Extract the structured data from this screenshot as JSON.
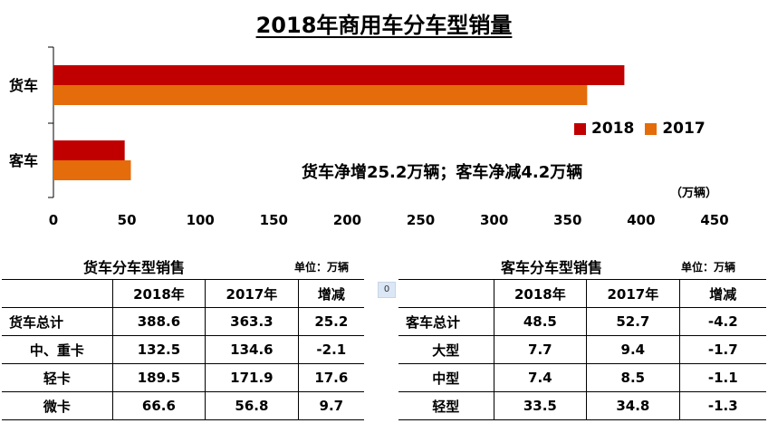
{
  "chart_data": {
    "type": "bar",
    "orientation": "horizontal",
    "title": "2018年商用车分车型销量",
    "categories": [
      "货车",
      "客车"
    ],
    "series": [
      {
        "name": "2018",
        "values": [
          388.6,
          48.5
        ],
        "color": "#c00000"
      },
      {
        "name": "2017",
        "values": [
          363.3,
          52.7
        ],
        "color": "#e46c0a"
      }
    ],
    "xlim": [
      0,
      450
    ],
    "xticks": [
      0,
      50,
      100,
      150,
      200,
      250,
      300,
      350,
      400,
      450
    ],
    "xunit": "（万辆）",
    "legend_position": "right",
    "grid": false,
    "annotation": "货车净增25.2万辆；客车净减4.2万辆"
  },
  "freight_table": {
    "title": "货车分车型销售",
    "unit": "单位：万辆",
    "headers": [
      "",
      "2018年",
      "2017年",
      "增减"
    ],
    "rows": [
      [
        "货车总计",
        "388.6",
        "363.3",
        "25.2"
      ],
      [
        "中、重卡",
        "132.5",
        "134.6",
        "-2.1"
      ],
      [
        "轻卡",
        "189.5",
        "171.9",
        "17.6"
      ],
      [
        "微卡",
        "66.6",
        "56.8",
        "9.7"
      ]
    ]
  },
  "passenger_table": {
    "title": "客车分车型销售",
    "unit": "单位：万辆",
    "headers": [
      "",
      "2018年",
      "2017年",
      "增减"
    ],
    "rows": [
      [
        "客车总计",
        "48.5",
        "52.7",
        "-4.2"
      ],
      [
        "大型",
        "7.7",
        "9.4",
        "-1.7"
      ],
      [
        "中型",
        "7.4",
        "8.5",
        "-1.1"
      ],
      [
        "轻型",
        "33.5",
        "34.8",
        "-1.3"
      ]
    ]
  },
  "marker_label": "0"
}
